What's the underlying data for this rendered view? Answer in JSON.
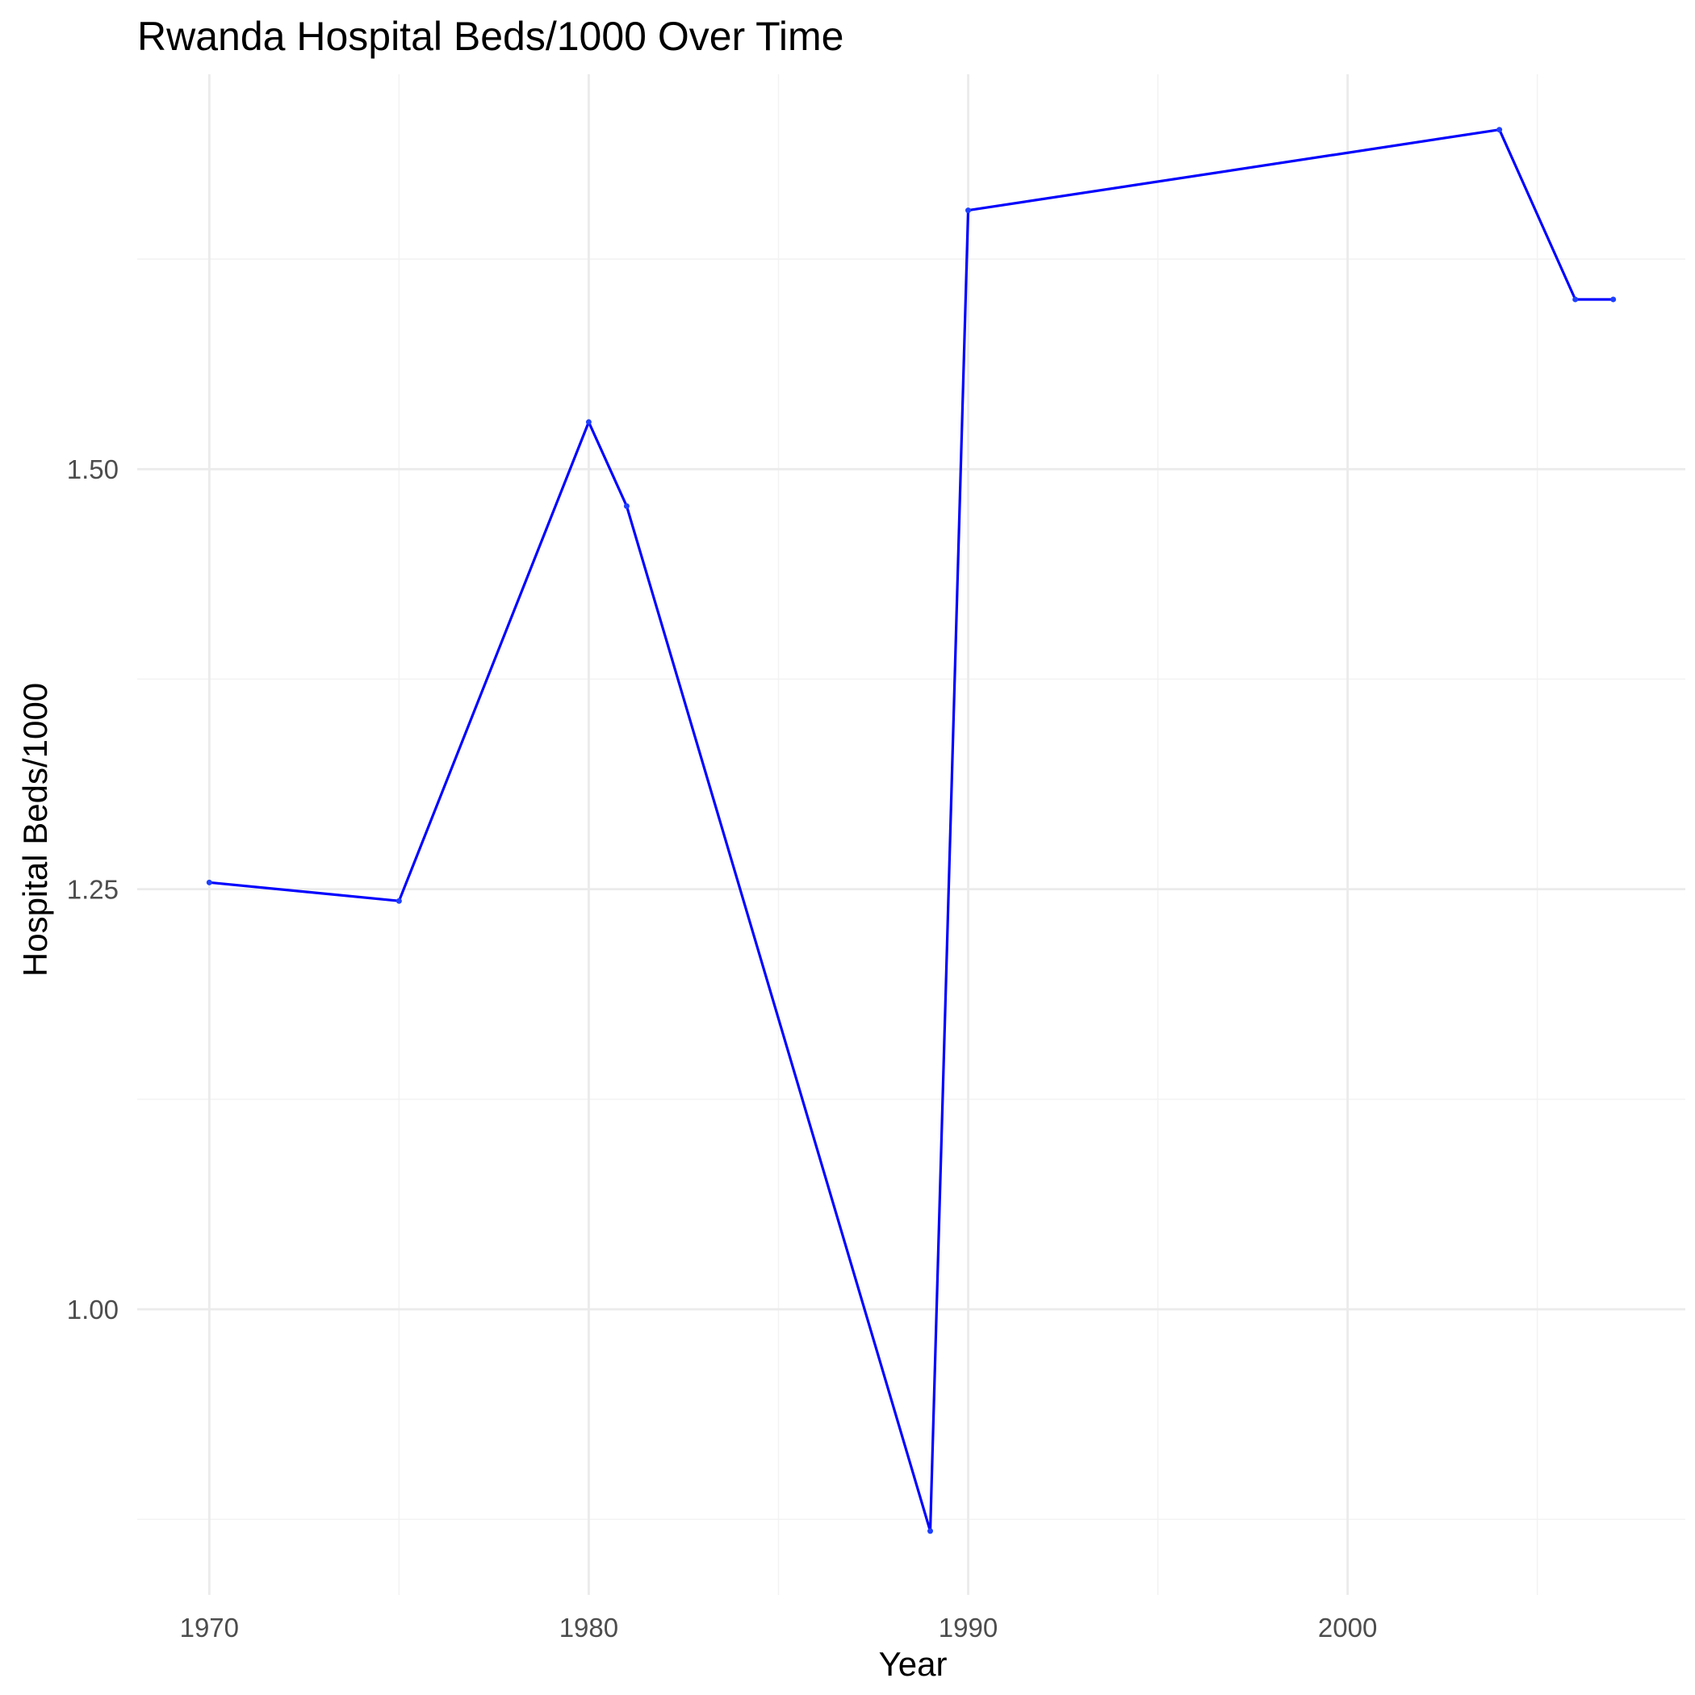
{
  "chart_data": {
    "type": "line",
    "title": "Rwanda Hospital Beds/1000 Over Time",
    "xlabel": "Year",
    "ylabel": "Hospital Beds/1000",
    "xlim": [
      1968.1,
      2008.9
    ],
    "ylim": [
      0.83,
      1.735
    ],
    "x_ticks": [
      1970,
      1980,
      1990,
      2000
    ],
    "x_tick_labels": [
      "1970",
      "1980",
      "1990",
      "2000"
    ],
    "x_minor_ticks": [
      1975,
      1985,
      1995,
      2005
    ],
    "y_ticks": [
      1.0,
      1.25,
      1.5
    ],
    "y_tick_labels": [
      "1.00",
      "1.25",
      "1.50"
    ],
    "y_minor_ticks": [
      0.875,
      1.125,
      1.375,
      1.625
    ],
    "grid": true,
    "legend": "none",
    "series": [
      {
        "color": "#0000ff",
        "x": [
          1970,
          1975,
          1980,
          1981,
          1989,
          1990,
          2004,
          2006,
          2007
        ],
        "values": [
          1.254,
          1.243,
          1.528,
          1.478,
          0.868,
          1.654,
          1.702,
          1.601,
          1.601
        ]
      }
    ]
  }
}
